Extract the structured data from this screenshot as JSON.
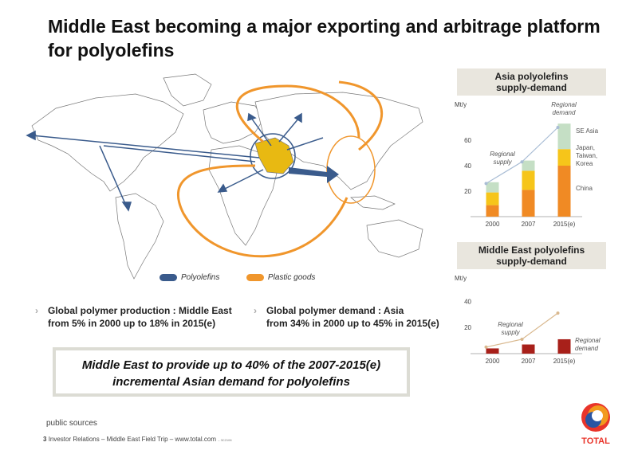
{
  "title": "Middle East becoming a major exporting and arbitrage platform for polyolefins",
  "legend": {
    "polyolefins": "Polyolefins",
    "plastic_goods": "Plastic goods",
    "colors": {
      "polyolefins": "#3a5b8c",
      "plastic_goods": "#f0962c"
    }
  },
  "bullets": [
    {
      "line1": "Global polymer production : Middle East",
      "line2": "from 5% in 2000 up to 18% in 2015(e)"
    },
    {
      "line1": "Global polymer demand : Asia",
      "line2": "from 34% in 2000 up to 45% in 2015(e)"
    }
  ],
  "callout": {
    "line1": "Middle East to provide up to 40% of the 2007-2015(e)",
    "line2": "incremental Asian demand for polyolefins"
  },
  "panel_asia": {
    "title_line1": "Asia polyolefins",
    "title_line2": "supply-demand"
  },
  "panel_me": {
    "title_line1": "Middle East polyolefins",
    "title_line2": "supply-demand"
  },
  "footer": {
    "source": "public sources",
    "page": "3",
    "text": "Investor Relations – Middle East Field Trip – www.total.com",
    "code": "– 3C2106"
  },
  "logo_text": "TOTAL",
  "chart_data": [
    {
      "type": "bar",
      "title": "Asia polyolefins supply-demand",
      "ylabel": "Mt/y",
      "ylim": [
        0,
        80
      ],
      "yticks": [
        20,
        40,
        60
      ],
      "categories": [
        "2000",
        "2007",
        "2015(e)"
      ],
      "stacked": true,
      "series": [
        {
          "name": "China",
          "values": [
            9,
            21,
            40
          ],
          "color": "#f08a24"
        },
        {
          "name": "Japan, Taiwan, Korea",
          "values": [
            10,
            15,
            13
          ],
          "color": "#f6c51a"
        },
        {
          "name": "SE Asia",
          "values": [
            8,
            8,
            20
          ],
          "color": "#c5dfc5"
        }
      ],
      "line": {
        "name": "Regional supply",
        "values": [
          26,
          43,
          70
        ],
        "color": "#a9bdd5"
      },
      "annotations": {
        "regional_supply": "Regional supply",
        "regional_demand": "Regional demand"
      }
    },
    {
      "type": "bar",
      "title": "Middle East polyolefins supply-demand",
      "ylabel": "Mt/y",
      "ylim": [
        0,
        50
      ],
      "yticks": [
        20,
        40
      ],
      "categories": [
        "2000",
        "2007",
        "2015(e)"
      ],
      "series": [
        {
          "name": "Regional demand",
          "values": [
            4,
            7,
            11
          ],
          "color": "#a8201a"
        }
      ],
      "line": {
        "name": "Regional supply",
        "values": [
          5,
          11,
          31
        ],
        "color": "#d9b88e"
      },
      "annotations": {
        "regional_supply": "Regional supply",
        "regional_demand": "Regional demand"
      }
    }
  ]
}
